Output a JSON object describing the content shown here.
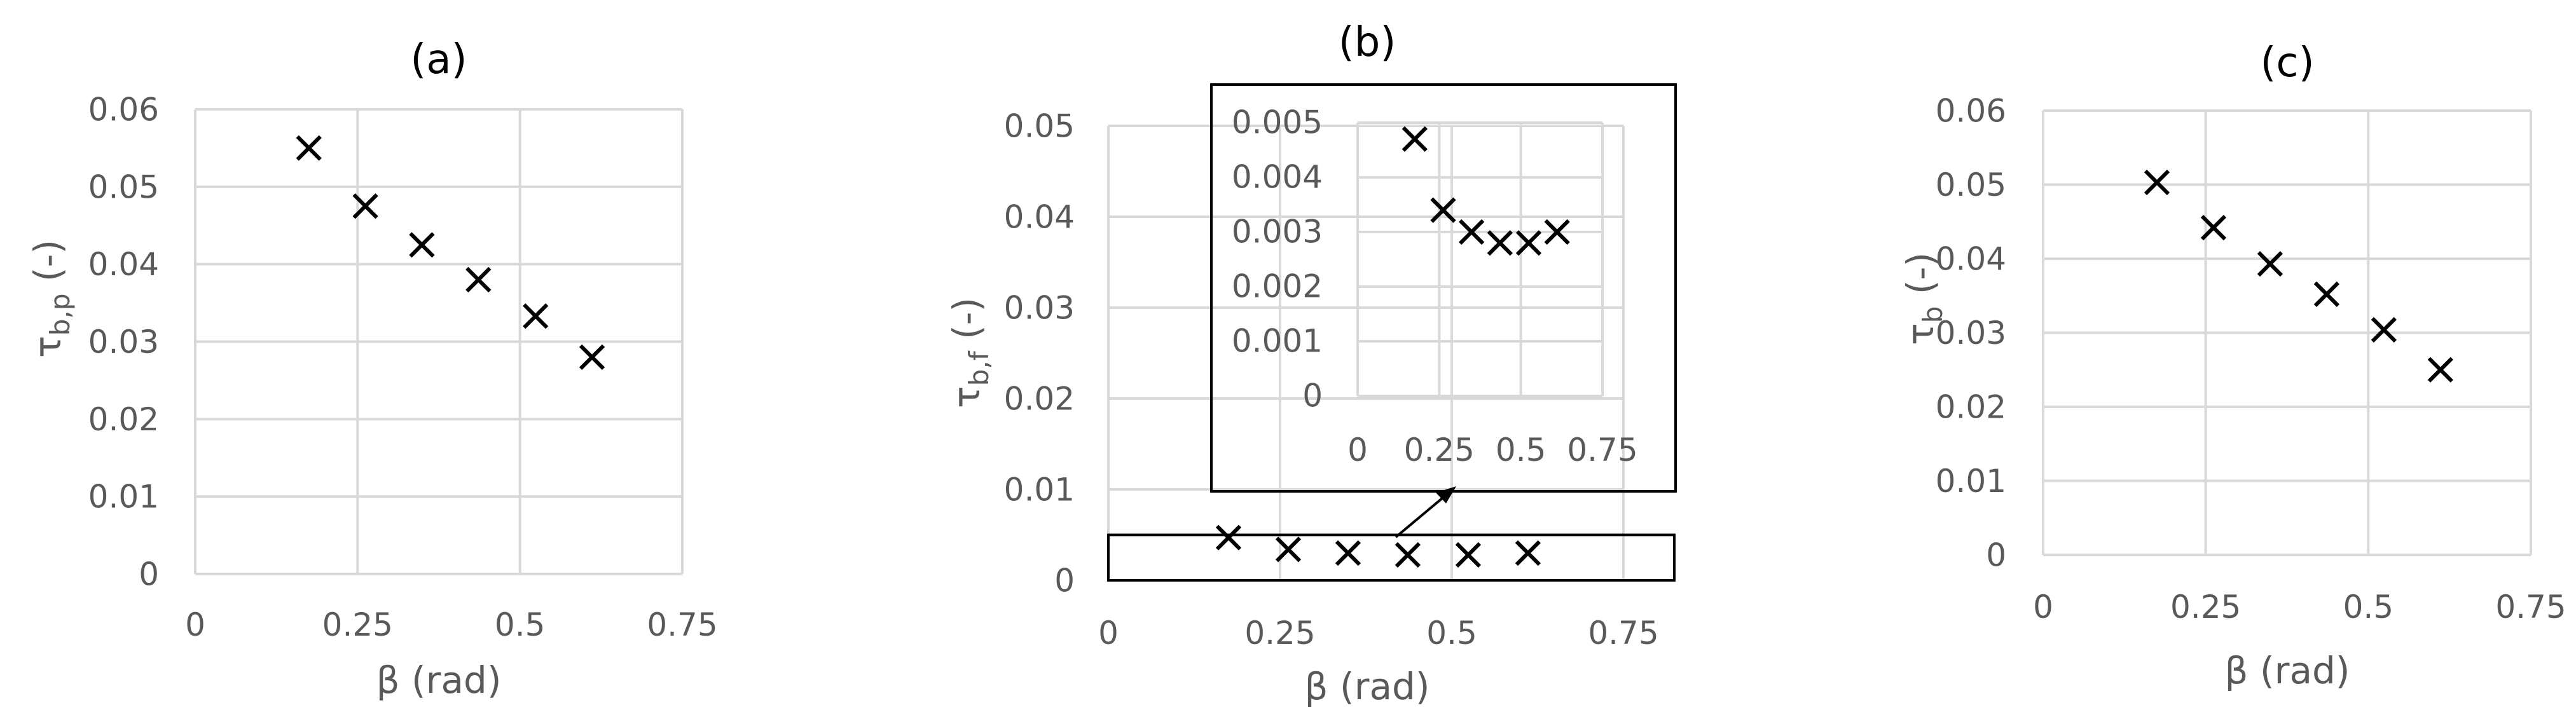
{
  "chart_data": [
    {
      "type": "scatter",
      "title": "(a)",
      "xlabel": "β (rad)",
      "ylabel": "τb,p (-)",
      "ylabel_parts": {
        "main": "τ",
        "sub": "b,p",
        "tail": " (-)"
      },
      "xlim": [
        0,
        0.75
      ],
      "ylim": [
        0,
        0.06
      ],
      "xticks": [
        "0",
        "0.25",
        "0.5",
        "0.75"
      ],
      "yticks": [
        "0",
        "0.01",
        "0.02",
        "0.03",
        "0.04",
        "0.05",
        "0.06"
      ],
      "grid": true,
      "marker": "x",
      "x": [
        0.175,
        0.262,
        0.349,
        0.436,
        0.524,
        0.611
      ],
      "y": [
        0.055,
        0.0475,
        0.0425,
        0.038,
        0.0333,
        0.028
      ]
    },
    {
      "type": "scatter",
      "title": "(b)",
      "xlabel": "β (rad)",
      "ylabel": "τb,f (-)",
      "ylabel_parts": {
        "main": "τ",
        "sub": "b,f",
        "tail": " (-)"
      },
      "xlim": [
        0,
        0.75
      ],
      "ylim": [
        0,
        0.05
      ],
      "xticks": [
        "0",
        "0.25",
        "0.5",
        "0.75"
      ],
      "yticks": [
        "0",
        "0.01",
        "0.02",
        "0.03",
        "0.04",
        "0.05"
      ],
      "grid": true,
      "marker": "x",
      "x": [
        0.175,
        0.262,
        0.349,
        0.436,
        0.524,
        0.611
      ],
      "y": [
        0.0047,
        0.0034,
        0.003,
        0.0028,
        0.0028,
        0.003
      ],
      "highlight_box": {
        "x": [
          0,
          0.75
        ],
        "y": [
          0,
          0.005
        ]
      },
      "inset": {
        "xlim": [
          0,
          0.75
        ],
        "ylim": [
          0,
          0.005
        ],
        "xticks": [
          "0",
          "0.25",
          "0.5",
          "0.75"
        ],
        "yticks": [
          "0",
          "0.001",
          "0.002",
          "0.003",
          "0.004",
          "0.005"
        ],
        "grid": true,
        "x": [
          0.175,
          0.262,
          0.349,
          0.436,
          0.524,
          0.611
        ],
        "y": [
          0.0047,
          0.0034,
          0.003,
          0.0028,
          0.0028,
          0.003
        ]
      }
    },
    {
      "type": "scatter",
      "title": "(c)",
      "xlabel": "β (rad)",
      "ylabel": "τb (-)",
      "ylabel_parts": {
        "main": "τ",
        "sub": "b",
        "tail": " (-)"
      },
      "xlim": [
        0,
        0.75
      ],
      "ylim": [
        0,
        0.06
      ],
      "xticks": [
        "0",
        "0.25",
        "0.5",
        "0.75"
      ],
      "yticks": [
        "0",
        "0.01",
        "0.02",
        "0.03",
        "0.04",
        "0.05",
        "0.06"
      ],
      "grid": true,
      "marker": "x",
      "x": [
        0.175,
        0.262,
        0.349,
        0.436,
        0.524,
        0.611
      ],
      "y": [
        0.0503,
        0.0442,
        0.0393,
        0.0352,
        0.0304,
        0.025
      ]
    }
  ]
}
